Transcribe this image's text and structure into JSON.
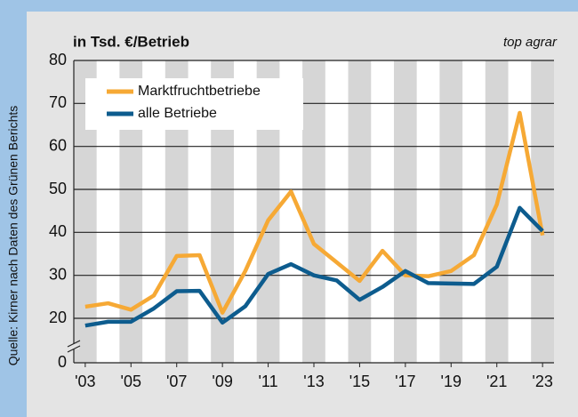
{
  "chart_data": {
    "type": "line",
    "title": "in Tsd. €/Betrieb",
    "subtitle": "top agrar",
    "source": "Quelle: Kirner nach Daten des Grünen Berichts",
    "x": [
      2003,
      2004,
      2005,
      2006,
      2007,
      2008,
      2009,
      2010,
      2011,
      2012,
      2013,
      2014,
      2015,
      2016,
      2017,
      2018,
      2019,
      2020,
      2021,
      2022,
      2023
    ],
    "series": [
      {
        "name": "Marktfruchtbetriebe",
        "color": "#f6a935",
        "values": [
          22.7,
          23.5,
          22,
          25.3,
          34.5,
          34.7,
          21.3,
          31,
          42.8,
          49.5,
          37.3,
          33,
          28.7,
          35.7,
          30,
          29.8,
          31,
          34.7,
          46.5,
          67.8,
          39.3
        ]
      },
      {
        "name": "alle Betriebe",
        "color": "#0d5c8e",
        "values": [
          18.3,
          19.2,
          19.2,
          22.3,
          26.3,
          26.4,
          19,
          22.8,
          30.3,
          32.6,
          30,
          28.8,
          24.3,
          27.3,
          31,
          28.2,
          28.1,
          28,
          32,
          45.7,
          40.3
        ]
      }
    ],
    "xlim": [
      2002.5,
      2023.5
    ],
    "xticks": [
      {
        "value": 2003,
        "label": "'03"
      },
      {
        "value": 2005,
        "label": "'05"
      },
      {
        "value": 2007,
        "label": "'07"
      },
      {
        "value": 2009,
        "label": "'09"
      },
      {
        "value": 2011,
        "label": "'11"
      },
      {
        "value": 2013,
        "label": "'13"
      },
      {
        "value": 2015,
        "label": "'15"
      },
      {
        "value": 2017,
        "label": "'17"
      },
      {
        "value": 2019,
        "label": "'19"
      },
      {
        "value": 2021,
        "label": "'21"
      },
      {
        "value": 2023,
        "label": "'23"
      }
    ],
    "ylim": [
      0,
      80
    ],
    "yticks": [
      0,
      20,
      30,
      40,
      50,
      60,
      70,
      80
    ],
    "axis_break": true,
    "grid": true,
    "legend": "upper left"
  }
}
